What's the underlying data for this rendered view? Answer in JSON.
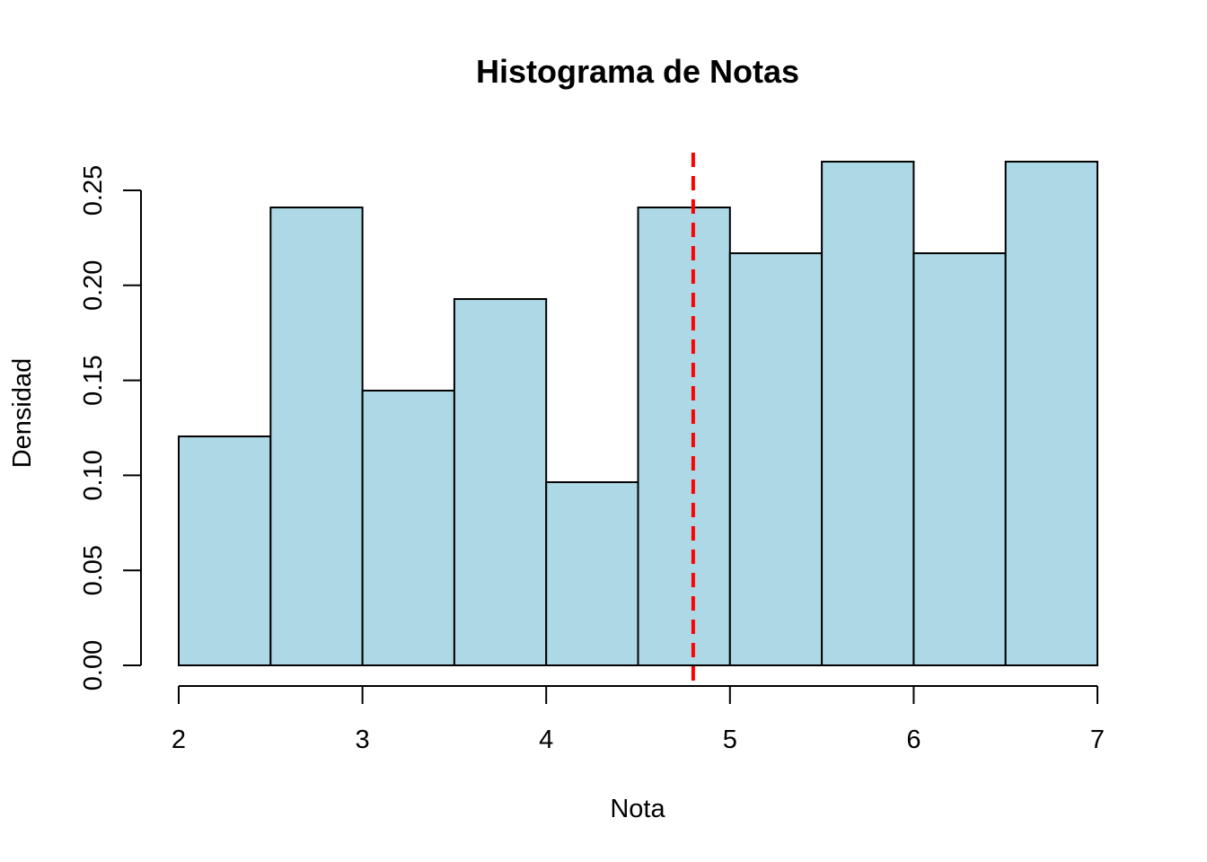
{
  "chart_data": {
    "type": "bar",
    "title": "Histograma de Notas",
    "xlabel": "Nota",
    "ylabel": "Densidad",
    "bins": [
      {
        "start": 2.0,
        "end": 2.5,
        "density": 0.1205
      },
      {
        "start": 2.5,
        "end": 3.0,
        "density": 0.241
      },
      {
        "start": 3.0,
        "end": 3.5,
        "density": 0.1446
      },
      {
        "start": 3.5,
        "end": 4.0,
        "density": 0.1928
      },
      {
        "start": 4.0,
        "end": 4.5,
        "density": 0.0964
      },
      {
        "start": 4.5,
        "end": 5.0,
        "density": 0.241
      },
      {
        "start": 5.0,
        "end": 5.5,
        "density": 0.2169
      },
      {
        "start": 5.5,
        "end": 6.0,
        "density": 0.2651
      },
      {
        "start": 6.0,
        "end": 6.5,
        "density": 0.2169
      },
      {
        "start": 6.5,
        "end": 7.0,
        "density": 0.2651
      }
    ],
    "xlim": [
      2,
      7
    ],
    "ylim": [
      0,
      0.25
    ],
    "x_ticks": [
      2,
      3,
      4,
      5,
      6,
      7
    ],
    "x_tick_labels": [
      "2",
      "3",
      "4",
      "5",
      "6",
      "7"
    ],
    "y_ticks": [
      0,
      0.05,
      0.1,
      0.15,
      0.2,
      0.25
    ],
    "y_tick_labels": [
      "0.00",
      "0.05",
      "0.10",
      "0.15",
      "0.20",
      "0.25"
    ],
    "mean_line": {
      "x": 4.8,
      "color": "#ff0000",
      "style": "dashed"
    },
    "bar_color": "#add8e6",
    "bar_border_color": "#000000",
    "grid": false,
    "legend": "none"
  }
}
